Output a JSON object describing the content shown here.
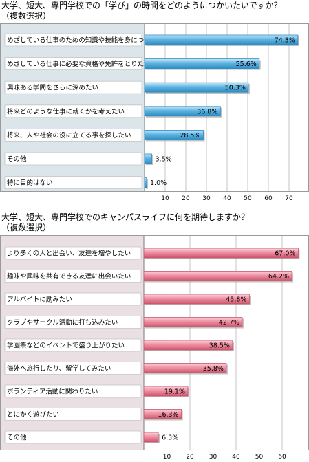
{
  "chart_data": [
    {
      "type": "bar",
      "orientation": "horizontal",
      "title": "大学、短大、専門学校での「学び」の時間をどのようにつかいたいですか？",
      "subtitle": "（複数選択）",
      "categories": [
        "めざしている仕事のための知識や技能を身につけたい",
        "めざしている仕事に必要な資格や免許をとりたい",
        "興味ある学問をさらに深めたい",
        "将来どのような仕事に就くかを考えたい",
        "将来、人や社会の役に立てる事を探したい",
        "その他",
        "特に目的はない"
      ],
      "values": [
        74.3,
        55.6,
        50.3,
        36.8,
        28.5,
        3.5,
        1.0
      ],
      "value_labels": [
        "74.3%",
        "55.6%",
        "50.3%",
        "36.8%",
        "28.5%",
        "3.5%",
        "1.0%"
      ],
      "xticks": [
        "10",
        "20",
        "30",
        "40",
        "50",
        "60",
        "70"
      ],
      "xlim": [
        0,
        75
      ],
      "grid": true,
      "colors": {
        "bar": "#5db4e2",
        "bar_light": "#c6e6f7",
        "bar_dark": "#2f8dc2",
        "label_panel": "#dce6ea",
        "label_box": "#ffffff",
        "grid": "#b8b8b8"
      }
    },
    {
      "type": "bar",
      "orientation": "horizontal",
      "title": "大学、短大、専門学校でのキャンパスライフに何を期待しますか？",
      "subtitle": "（複数選択）",
      "categories": [
        "より多くの人と出会い、友達を増やしたい",
        "趣味や興味を共有できる友達に出会いたい",
        "アルバイトに励みたい",
        "クラブやサークル活動に打ち込みたい",
        "学園祭などのイベントで盛り上がりたい",
        "海外へ旅行したり、留学してみたい",
        "ボランティア活動に関わりたい",
        "とにかく遊びたい",
        "その他"
      ],
      "values": [
        67.0,
        64.2,
        45.8,
        42.7,
        38.5,
        35.8,
        19.1,
        16.3,
        6.3
      ],
      "value_labels": [
        "67.0%",
        "64.2%",
        "45.8%",
        "42.7%",
        "38.5%",
        "35.8%",
        "19.1%",
        "16.3%",
        "6.3%"
      ],
      "xticks": [
        "10",
        "20",
        "30",
        "40",
        "50",
        "60"
      ],
      "xlim": [
        0,
        69
      ],
      "grid": true,
      "colors": {
        "bar": "#ef8fa2",
        "bar_light": "#fad4dc",
        "bar_dark": "#c9566d",
        "label_panel": "#eadfe3",
        "label_box": "#ffffff",
        "grid": "#b8b8b8"
      }
    }
  ]
}
